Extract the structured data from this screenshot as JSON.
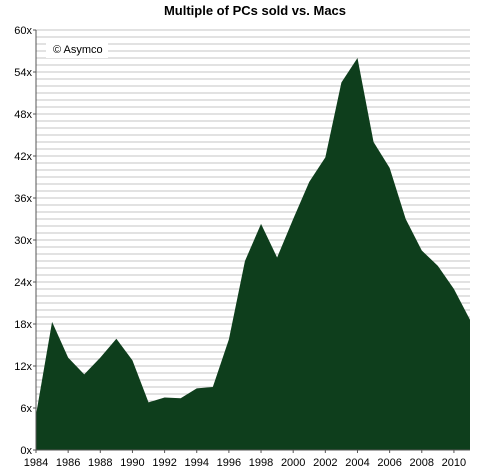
{
  "chart_data": {
    "type": "area",
    "title": "Multiple of PCs sold vs. Macs",
    "annotation": "© Asymco",
    "xlabel": "",
    "ylabel": "",
    "x": [
      1984,
      1985,
      1986,
      1987,
      1988,
      1989,
      1990,
      1991,
      1992,
      1993,
      1994,
      1995,
      1996,
      1997,
      1998,
      1999,
      2000,
      2001,
      2002,
      2003,
      2004,
      2005,
      2006,
      2007,
      2008,
      2009,
      2010,
      2011
    ],
    "series": [
      {
        "values": [
          5,
          18.3,
          13.2,
          10.8,
          13.2,
          15.9,
          12.8,
          6.8,
          7.5,
          7.4,
          8.8,
          9.0,
          15.8,
          27.0,
          32.3,
          27.5,
          33.0,
          38.3,
          41.8,
          52.5,
          56.0,
          44.0,
          40.3,
          33.0,
          28.5,
          26.3,
          23.0,
          18.6
        ]
      }
    ],
    "xticks": [
      "1984",
      "1986",
      "1988",
      "1990",
      "1992",
      "1994",
      "1996",
      "1998",
      "2000",
      "2002",
      "2004",
      "2006",
      "2008",
      "2010"
    ],
    "yticks": [
      "0x",
      "6x",
      "12x",
      "18x",
      "24x",
      "30x",
      "36x",
      "42x",
      "48x",
      "54x",
      "60x"
    ],
    "ylim": [
      0,
      60
    ],
    "grid": true,
    "colors": {
      "fill": "#0e3e1c",
      "grid": "#c4c4c4",
      "axis": "#555555"
    }
  }
}
